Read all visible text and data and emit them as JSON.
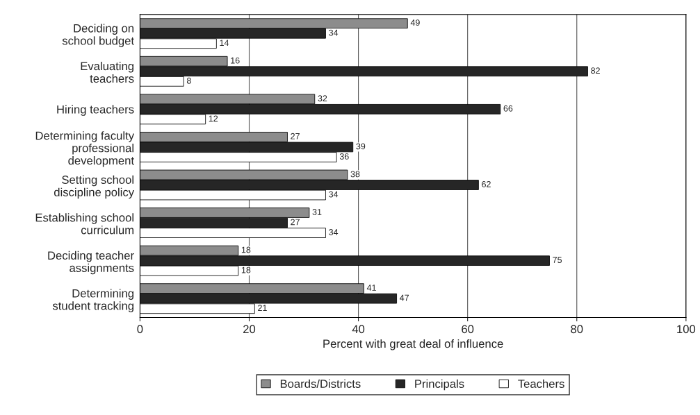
{
  "chart_data": {
    "type": "bar",
    "orientation": "horizontal",
    "xlabel": "Percent with great deal of influence",
    "categories": [
      "Deciding on\nschool budget",
      "Evaluating\nteachers",
      "Hiring teachers",
      "Determining faculty\nprofessional\ndevelopment",
      "Setting school\ndiscipline policy",
      "Establishing school\ncurriculum",
      "Deciding teacher\nassignments",
      "Determining\nstudent tracking"
    ],
    "series": [
      {
        "name": "Boards/Districts",
        "color": "#8c8c8c",
        "values": [
          49,
          16,
          32,
          27,
          38,
          31,
          18,
          41
        ]
      },
      {
        "name": "Principals",
        "color": "#262626",
        "values": [
          34,
          82,
          66,
          39,
          62,
          27,
          75,
          47
        ]
      },
      {
        "name": "Teachers",
        "color": "#ffffff",
        "values": [
          14,
          8,
          12,
          36,
          34,
          34,
          18,
          21
        ]
      }
    ],
    "xlim": [
      0,
      100
    ],
    "xticks": [
      0,
      20,
      40,
      60,
      80,
      100
    ],
    "grid": "x",
    "legend": "bottom",
    "data_labels": true
  }
}
